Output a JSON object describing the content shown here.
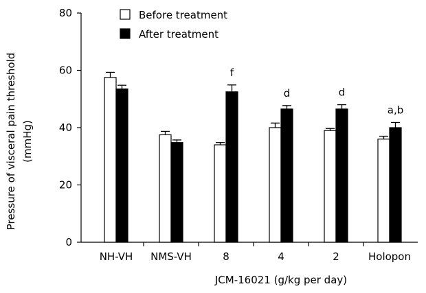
{
  "chart_data": {
    "type": "bar",
    "ylabel_lines": [
      "Pressure of visceral pain threshold",
      "(mmHg)"
    ],
    "ylim": [
      0,
      80
    ],
    "yticks": [
      0,
      20,
      40,
      60,
      80
    ],
    "categories": [
      "NH-VH",
      "NMS-VH",
      "8",
      "4",
      "2",
      "Holopon"
    ],
    "group_label": "JCM-16021 (g/kg per day)",
    "series": [
      {
        "name": "Before treatment",
        "values": [
          57.5,
          37.5,
          34,
          40,
          39,
          36
        ],
        "errors": [
          1.8,
          1.2,
          0.8,
          1.6,
          0.7,
          1.0
        ],
        "color": "#ffffff"
      },
      {
        "name": "After treatment",
        "values": [
          53.5,
          34.8,
          52.5,
          46.5,
          46.5,
          40
        ],
        "errors": [
          1.3,
          0.9,
          2.4,
          1.2,
          1.5,
          1.8
        ],
        "color": "#000000"
      }
    ],
    "annotations": [
      "",
      "",
      "f",
      "d",
      "d",
      "a,b"
    ],
    "legend": "top-left",
    "grid": false
  }
}
